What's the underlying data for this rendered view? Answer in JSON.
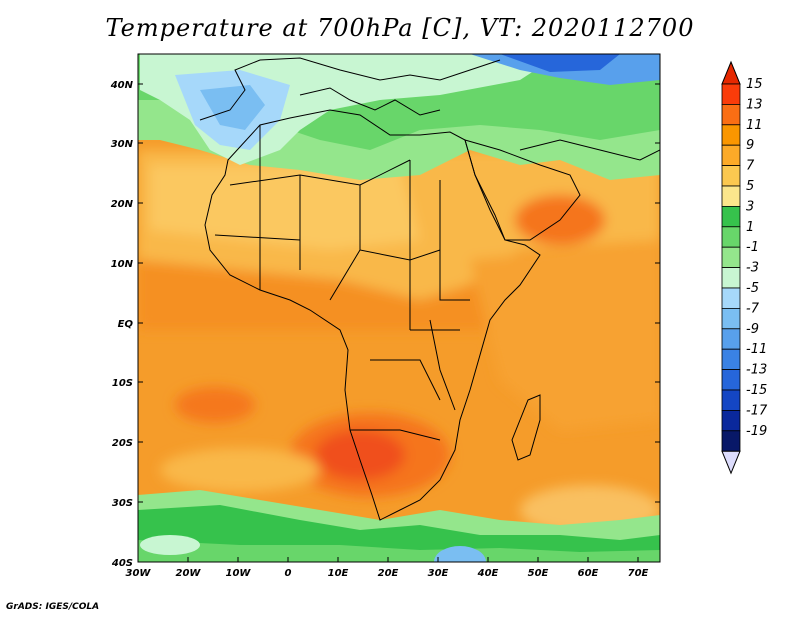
{
  "title": "Temperature at 700hPa [C], VT: 2020112700",
  "credit": "GrADS: IGES/COLA",
  "lat_ticks": [
    "40N",
    "30N",
    "20N",
    "10N",
    "EQ",
    "10S",
    "20S",
    "30S",
    "40S"
  ],
  "lon_ticks": [
    "30W",
    "20W",
    "10W",
    "0",
    "10E",
    "20E",
    "30E",
    "40E",
    "50E",
    "60E",
    "70E"
  ],
  "colorbar": {
    "labels": [
      "15",
      "13",
      "11",
      "9",
      "7",
      "5",
      "3",
      "1",
      "-1",
      "-3",
      "-5",
      "-7",
      "-9",
      "-11",
      "-13",
      "-15",
      "-17",
      "-19"
    ],
    "colors": [
      "#fa3c0a",
      "#fa6e14",
      "#fa9600",
      "#fcaa28",
      "#fbc850",
      "#fbe68c",
      "#36c24c",
      "#68d66a",
      "#94e68c",
      "#c8f6d2",
      "#a6d8fa",
      "#7abef2",
      "#58a0ec",
      "#3a82e4",
      "#2666da",
      "#1446c4",
      "#0a289c",
      "#081868"
    ],
    "top_color": "#e62800",
    "bottom_color": "#dcdcfc"
  },
  "colors": {
    "ocean_base": "#f59c2a",
    "land_base": "#f9b84a"
  }
}
